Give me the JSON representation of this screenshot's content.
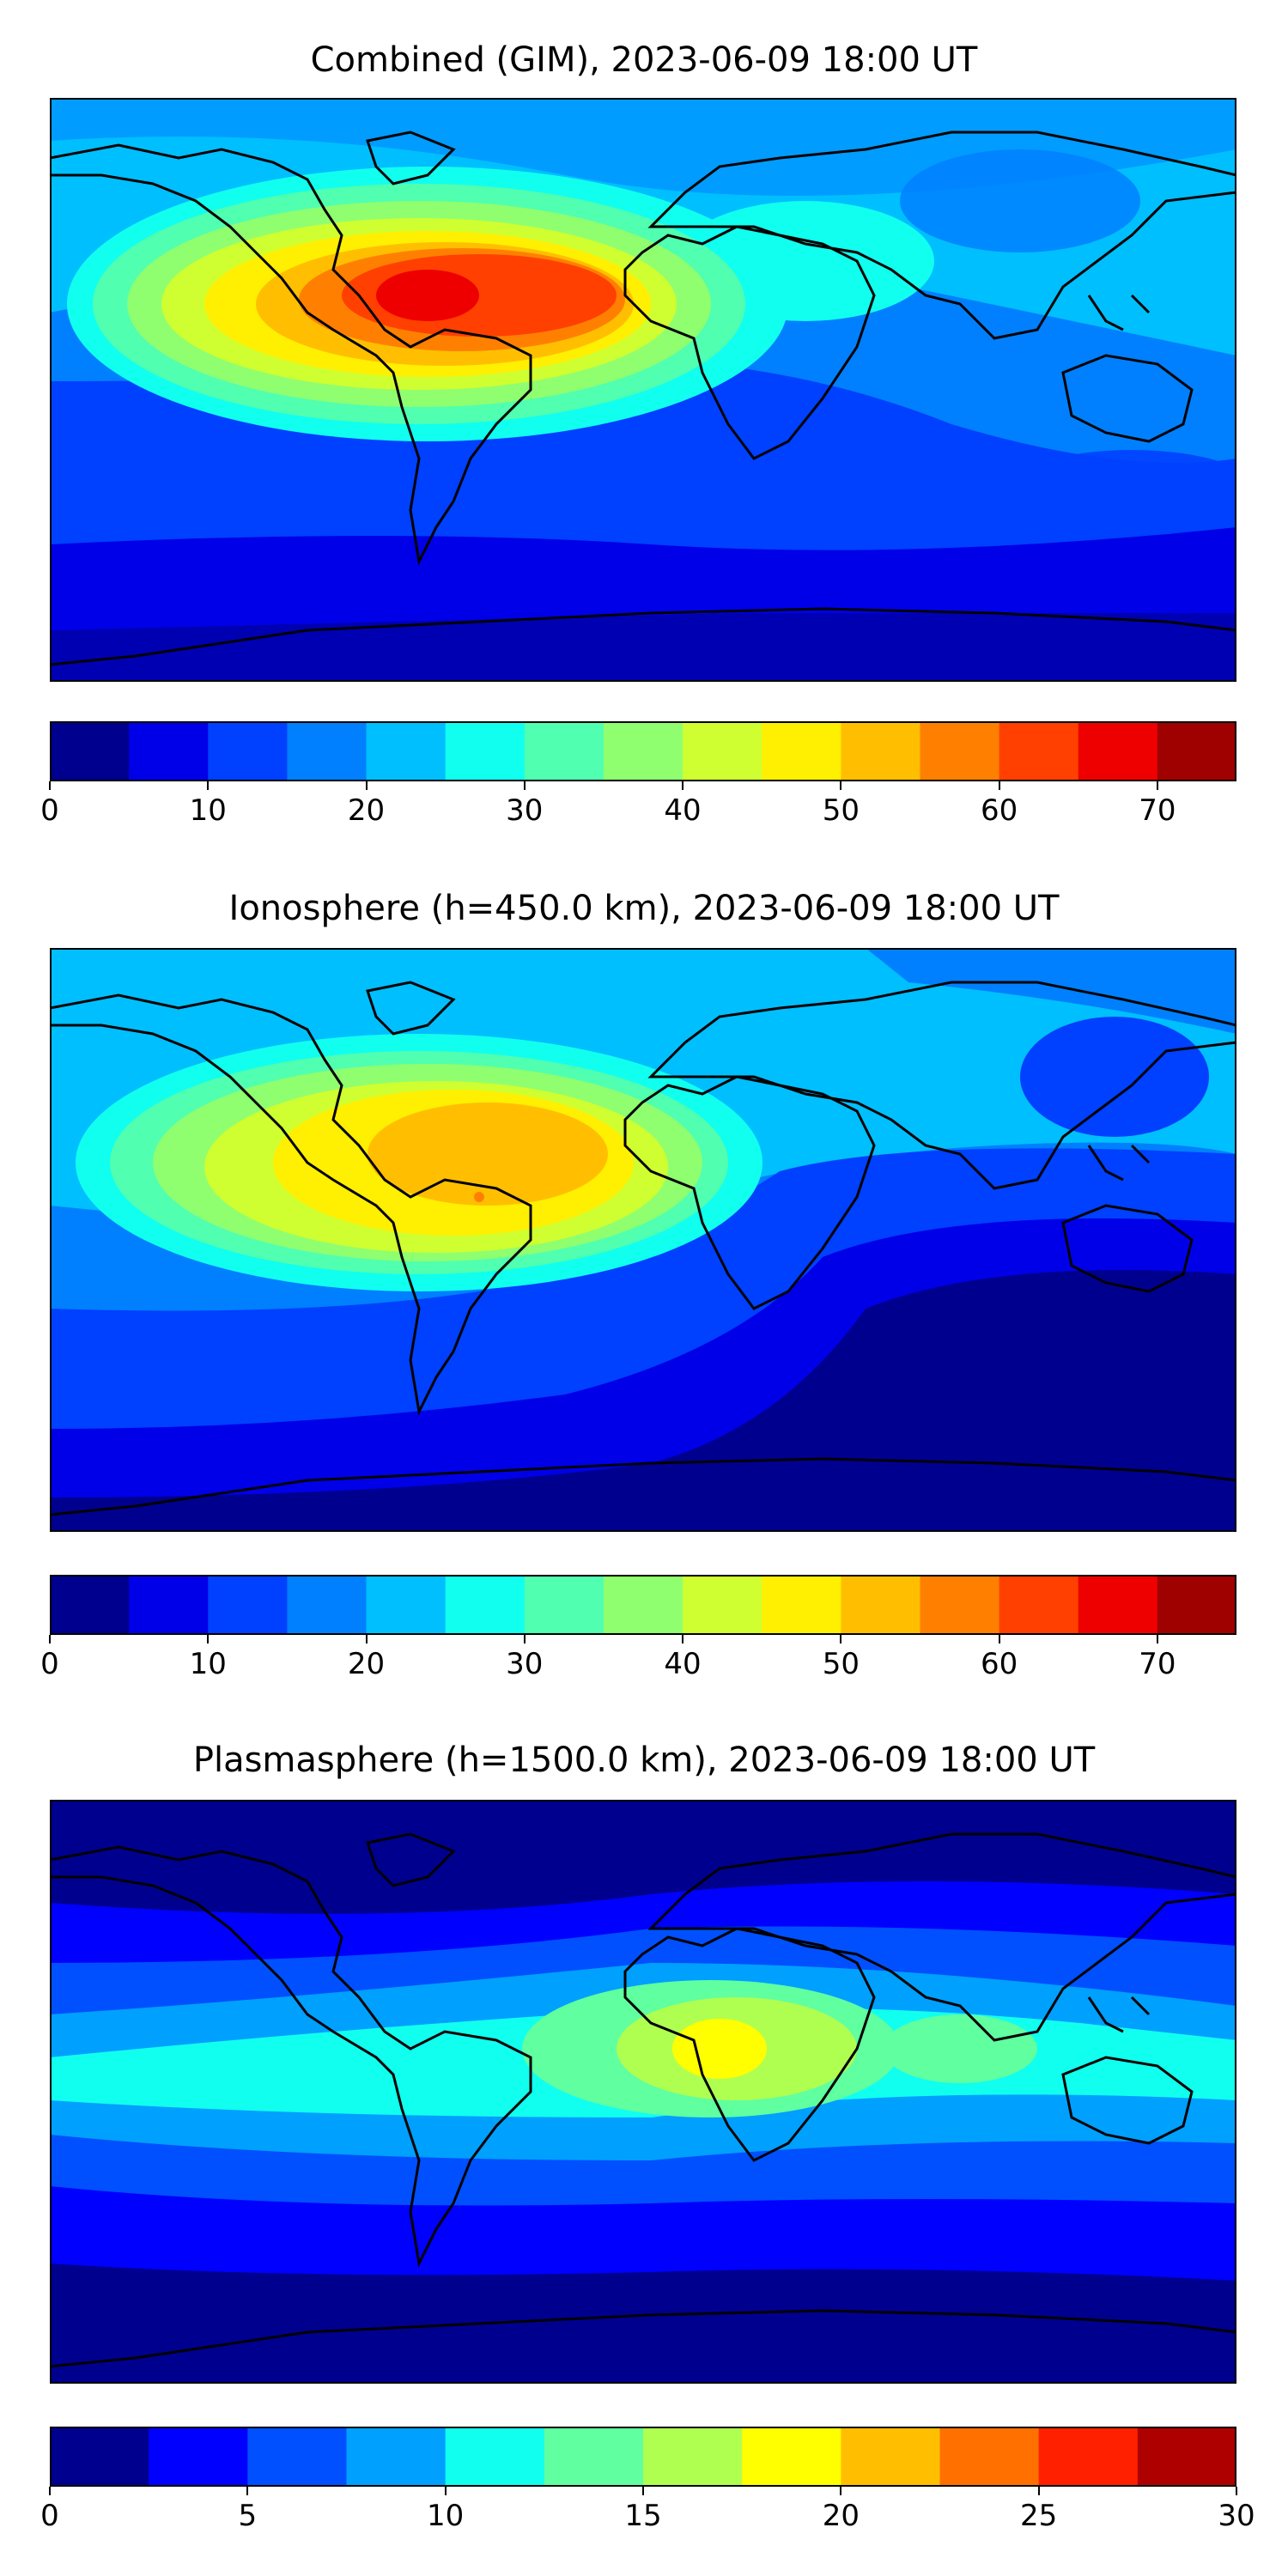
{
  "chart_data": [
    {
      "type": "heatmap",
      "title": "Combined (GIM), 2023-06-09 18:00 UT",
      "projection": "plate-carree world map with coastlines",
      "levels": [
        0,
        5,
        10,
        15,
        20,
        25,
        30,
        35,
        40,
        45,
        50,
        55,
        60,
        65,
        70,
        75
      ],
      "colorbar_ticks": [
        0,
        10,
        20,
        30,
        40,
        50,
        60,
        70
      ],
      "colormap": [
        "#00008f",
        "#0000e8",
        "#0040ff",
        "#0080ff",
        "#00bfff",
        "#10ffef",
        "#50ffaf",
        "#8fff6f",
        "#cfff30",
        "#ffef00",
        "#ffbf00",
        "#ff8000",
        "#ff4000",
        "#ef0000",
        "#9f0000"
      ],
      "peak_value": 70,
      "peak_location": "northern South America",
      "min_region": "high southern latitudes, Indian Ocean",
      "colorbar": "horizontal below map"
    },
    {
      "type": "heatmap",
      "title": "Ionosphere  (h=450.0 km), 2023-06-09 18:00 UT",
      "projection": "plate-carree world map with coastlines",
      "levels": [
        0,
        5,
        10,
        15,
        20,
        25,
        30,
        35,
        40,
        45,
        50,
        55,
        60,
        65,
        70,
        75
      ],
      "colorbar_ticks": [
        0,
        10,
        20,
        30,
        40,
        50,
        60,
        70
      ],
      "colormap": [
        "#00008f",
        "#0000e8",
        "#0040ff",
        "#0080ff",
        "#00bfff",
        "#10ffef",
        "#50ffaf",
        "#8fff6f",
        "#cfff30",
        "#ffef00",
        "#ffbf00",
        "#ff8000",
        "#ff4000",
        "#ef0000",
        "#9f0000"
      ],
      "peak_value": 55,
      "peak_location": "northern South America / Caribbean",
      "min_region": "Indian Ocean, Southern Ocean",
      "colorbar": "horizontal below map"
    },
    {
      "type": "heatmap",
      "title": "Plasmasphere (h=1500.0 km), 2023-06-09 18:00 UT",
      "projection": "plate-carree world map with coastlines",
      "levels": [
        0,
        2.5,
        5,
        7.5,
        10,
        12.5,
        15,
        17.5,
        20,
        22.5,
        25,
        27.5,
        30
      ],
      "colorbar_ticks": [
        0,
        5,
        10,
        15,
        20,
        25,
        30
      ],
      "colormap": [
        "#00008f",
        "#0000ff",
        "#0050ff",
        "#00a0ff",
        "#10ffef",
        "#60ff9f",
        "#afff50",
        "#ffff00",
        "#ffbf00",
        "#ff7000",
        "#ff2000",
        "#af0000"
      ],
      "peak_value": 20,
      "peak_location": "northeast Africa",
      "min_region": "polar latitudes",
      "colorbar": "horizontal below map"
    }
  ],
  "colors": {
    "land_outline": "#000000",
    "background": "#ffffff"
  }
}
